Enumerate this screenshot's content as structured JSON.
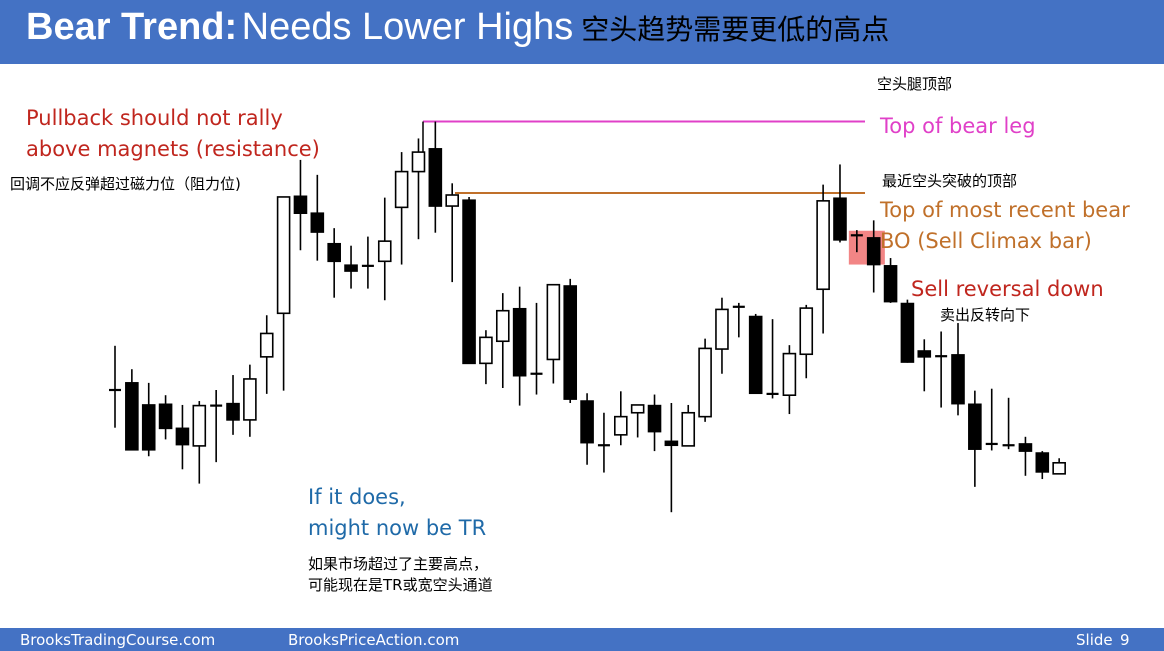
{
  "header": {
    "title_bold": "Bear Trend:",
    "title_rest": "Needs Lower Highs",
    "title_cn": "空头趋势需要更低的高点"
  },
  "annotations": {
    "pullback_en_1": "Pullback should not rally",
    "pullback_en_2": "above magnets (resistance)",
    "pullback_cn": "回调不应反弹超过磁力位（阻力位)",
    "top_bear_leg_cn": "空头腿顶部",
    "top_bear_leg_en": "Top of bear leg",
    "recent_bo_cn": "最近空头突破的顶部",
    "recent_bo_en_1": "Top of most recent bear",
    "recent_bo_en_2": "BO (Sell Climax bar)",
    "sell_reversal_en": "Sell reversal down",
    "sell_reversal_cn": "卖出反转向下",
    "tr_en_1": "If it does,",
    "tr_en_2": "might now be TR",
    "tr_cn_1": "如果市场超过了主要高点，",
    "tr_cn_2": "可能现在是TR或宽空头通道"
  },
  "footer": {
    "left": "BrooksTradingCourse.com",
    "center": "BrooksPriceAction.com",
    "slide_label": "Slide",
    "slide_number": "9"
  },
  "colors": {
    "header_bg": "#4472c4",
    "magenta_line": "#e040c8",
    "orange_line": "#c0702a",
    "red_text": "#c0261e",
    "blue_text": "#1f6aa8",
    "highlight": "#f07070"
  },
  "chart_data": {
    "type": "candlestick",
    "price_scale": "unlabeled, price rises toward top (values below are relative price levels)",
    "bars": [
      {
        "o": 20.0,
        "h": 26.8,
        "l": 14.2,
        "c": 20.0
      },
      {
        "o": 21.1,
        "h": 23.2,
        "l": 11.1,
        "c": 10.8
      },
      {
        "o": 17.7,
        "h": 21.1,
        "l": 9.8,
        "c": 10.8
      },
      {
        "o": 17.8,
        "h": 19.2,
        "l": 12.4,
        "c": 14.1
      },
      {
        "o": 14.1,
        "h": 17.7,
        "l": 7.8,
        "c": 11.6
      },
      {
        "o": 11.4,
        "h": 18.3,
        "l": 5.6,
        "c": 17.6
      },
      {
        "o": 17.5,
        "h": 20.0,
        "l": 8.9,
        "c": 17.6
      },
      {
        "o": 17.9,
        "h": 22.3,
        "l": 13.1,
        "c": 15.4
      },
      {
        "o": 15.4,
        "h": 23.9,
        "l": 12.8,
        "c": 21.7
      },
      {
        "o": 25.1,
        "h": 31.5,
        "l": 19.4,
        "c": 28.7
      },
      {
        "o": 31.8,
        "h": 38.3,
        "l": 19.9,
        "c": 49.7
      },
      {
        "o": 49.8,
        "h": 55.4,
        "l": 41.5,
        "c": 47.2
      },
      {
        "o": 47.2,
        "h": 53.1,
        "l": 39.9,
        "c": 44.3
      },
      {
        "o": 42.5,
        "h": 44.9,
        "l": 34.2,
        "c": 39.8
      },
      {
        "o": 39.2,
        "h": 42.2,
        "l": 35.6,
        "c": 38.3
      },
      {
        "o": 38.9,
        "h": 43.6,
        "l": 35.6,
        "c": 39.1
      },
      {
        "o": 39.8,
        "h": 49.6,
        "l": 33.8,
        "c": 42.9
      },
      {
        "o": 48.1,
        "h": 56.6,
        "l": 39.3,
        "c": 53.6
      },
      {
        "o": 53.6,
        "h": 58.7,
        "l": 43.2,
        "c": 56.6
      },
      {
        "o": 57.1,
        "h": 61.3,
        "l": 44.2,
        "c": 48.3
      },
      {
        "o": 48.3,
        "h": 51.8,
        "l": 36.6,
        "c": 50.0
      },
      {
        "o": 49.2,
        "h": 49.7,
        "l": 24.3,
        "c": 24.1
      },
      {
        "o": 24.1,
        "h": 29.2,
        "l": 20.9,
        "c": 28.1
      },
      {
        "o": 27.5,
        "h": 34.9,
        "l": 20.3,
        "c": 32.2
      },
      {
        "o": 32.5,
        "h": 35.9,
        "l": 17.6,
        "c": 22.2
      },
      {
        "o": 22.2,
        "h": 33.4,
        "l": 19.3,
        "c": 22.5
      },
      {
        "o": 24.7,
        "h": 36.3,
        "l": 21.0,
        "c": 36.2
      },
      {
        "o": 36.0,
        "h": 37.1,
        "l": 18.0,
        "c": 18.6
      },
      {
        "o": 18.3,
        "h": 19.5,
        "l": 8.5,
        "c": 11.9
      },
      {
        "o": 11.4,
        "h": 16.5,
        "l": 7.3,
        "c": 11.5
      },
      {
        "o": 13.1,
        "h": 19.8,
        "l": 11.5,
        "c": 15.9
      },
      {
        "o": 16.5,
        "h": 17.7,
        "l": 12.7,
        "c": 17.7
      },
      {
        "o": 17.6,
        "h": 19.3,
        "l": 10.6,
        "c": 13.6
      },
      {
        "o": 12.1,
        "h": 18.0,
        "l": 1.2,
        "c": 11.5
      },
      {
        "o": 11.4,
        "h": 17.7,
        "l": 11.6,
        "c": 16.5
      },
      {
        "o": 15.9,
        "h": 27.9,
        "l": 15.1,
        "c": 26.4
      },
      {
        "o": 26.3,
        "h": 34.2,
        "l": 22.5,
        "c": 32.4
      },
      {
        "o": 32.8,
        "h": 33.4,
        "l": 28.1,
        "c": 32.5
      },
      {
        "o": 31.3,
        "h": 31.7,
        "l": 19.5,
        "c": 19.5
      },
      {
        "o": 19.3,
        "h": 30.9,
        "l": 18.7,
        "c": 19.4
      },
      {
        "o": 19.2,
        "h": 26.9,
        "l": 16.3,
        "c": 25.6
      },
      {
        "o": 25.5,
        "h": 33.1,
        "l": 21.8,
        "c": 32.6
      },
      {
        "o": 35.5,
        "h": 51.6,
        "l": 28.7,
        "c": 49.1
      },
      {
        "o": 49.5,
        "h": 54.7,
        "l": 42.7,
        "c": 43.1
      },
      {
        "o": 43.6,
        "h": 44.6,
        "l": 41.2,
        "c": 43.8
      },
      {
        "o": 43.4,
        "h": 46.1,
        "l": 35.0,
        "c": 39.3
      },
      {
        "o": 39.1,
        "h": 40.3,
        "l": 33.4,
        "c": 33.6
      },
      {
        "o": 33.3,
        "h": 33.9,
        "l": 24.2,
        "c": 24.3
      },
      {
        "o": 26.0,
        "h": 27.8,
        "l": 19.8,
        "c": 25.1
      },
      {
        "o": 25.2,
        "h": 29.0,
        "l": 17.3,
        "c": 24.9
      },
      {
        "o": 25.4,
        "h": 30.3,
        "l": 16.1,
        "c": 17.9
      },
      {
        "o": 17.8,
        "h": 19.9,
        "l": 5.1,
        "c": 10.9
      },
      {
        "o": 11.5,
        "h": 20.2,
        "l": 10.7,
        "c": 11.7
      },
      {
        "o": 11.5,
        "h": 18.8,
        "l": 10.9,
        "c": 11.5
      },
      {
        "o": 11.7,
        "h": 12.8,
        "l": 6.8,
        "c": 10.6
      },
      {
        "o": 10.3,
        "h": 10.6,
        "l": 6.3,
        "c": 7.4
      },
      {
        "o": 7.1,
        "h": 9.5,
        "l": 7.5,
        "c": 8.8
      }
    ],
    "horizontal_lines": [
      {
        "label": "Top of bear leg",
        "level": 61.3,
        "color": "#e040c8"
      },
      {
        "label": "Top of most recent bear BO (Sell Climax bar)",
        "level": 50.3,
        "color": "#c0702a"
      }
    ],
    "highlighted_bar": 44
  }
}
